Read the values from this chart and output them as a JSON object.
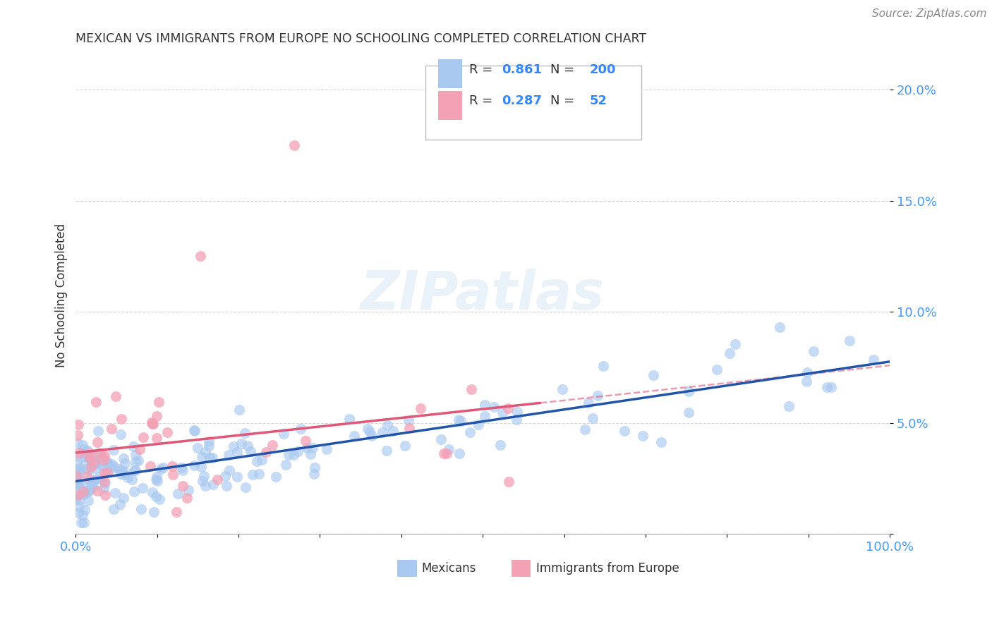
{
  "title": "MEXICAN VS IMMIGRANTS FROM EUROPE NO SCHOOLING COMPLETED CORRELATION CHART",
  "source": "Source: ZipAtlas.com",
  "ylabel": "No Schooling Completed",
  "blue_R": 0.861,
  "blue_N": 200,
  "pink_R": 0.287,
  "pink_N": 52,
  "blue_color": "#A8C8F0",
  "blue_edge_color": "#A8C8F0",
  "blue_line_color": "#2255AA",
  "pink_color": "#F4A0B5",
  "pink_edge_color": "#F4A0B5",
  "pink_line_color": "#E05878",
  "blue_label": "Mexicans",
  "pink_label": "Immigrants from Europe",
  "bg_color": "#FFFFFF",
  "watermark_text": "ZIPatlas",
  "xlim": [
    0.0,
    1.0
  ],
  "ylim": [
    0.0,
    0.215
  ],
  "x_ticks": [
    0.0,
    0.1,
    0.2,
    0.3,
    0.4,
    0.5,
    0.6,
    0.7,
    0.8,
    0.9,
    1.0
  ],
  "y_ticks": [
    0.0,
    0.05,
    0.1,
    0.15,
    0.2
  ],
  "title_color": "#333333",
  "source_color": "#888888",
  "axis_tick_color": "#4499FF",
  "grid_color": "#CCCCCC",
  "legend_text_color": "#333333",
  "legend_val_color": "#3388FF"
}
